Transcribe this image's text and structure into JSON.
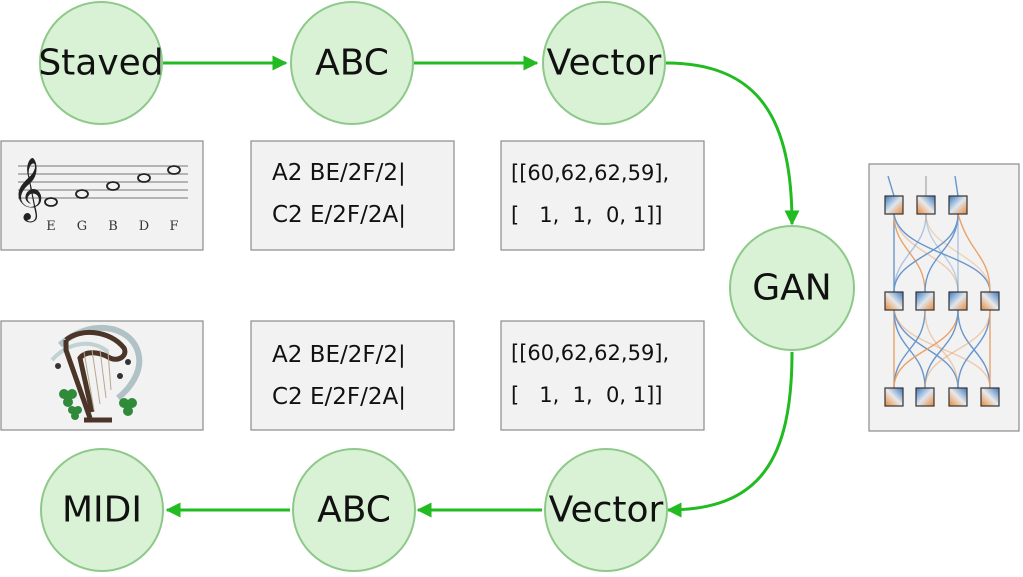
{
  "nodes": {
    "staved": "Staved",
    "abc_top": "ABC",
    "vector_top": "Vector",
    "gan": "GAN",
    "vector_bottom": "Vector",
    "abc_bottom": "ABC",
    "midi": "MIDI"
  },
  "staff_notes": [
    "E",
    "G",
    "B",
    "D",
    "F"
  ],
  "abc_top": {
    "line1": "A2 BE/2F/2|",
    "line2": "C2 E/2F/2A|"
  },
  "abc_bottom": {
    "line1": "A2 BE/2F/2|",
    "line2": "C2 E/2F/2A|"
  },
  "vector_top": {
    "line1": "[[60,62,62,59],",
    "line2": "[   1,  1,  0, 1]]"
  },
  "vector_bottom": {
    "line1": "[[60,62,62,59],",
    "line2": "[   1,  1,  0, 1]]"
  },
  "icons": {
    "staff": "music-staff-icon",
    "harp": "celtic-harp-icon",
    "network": "neural-network-icon"
  },
  "colors": {
    "node_fill": "#d9f2d5",
    "edge": "#22bb22",
    "orange": "#e8883a",
    "blue": "#3a78c0"
  }
}
